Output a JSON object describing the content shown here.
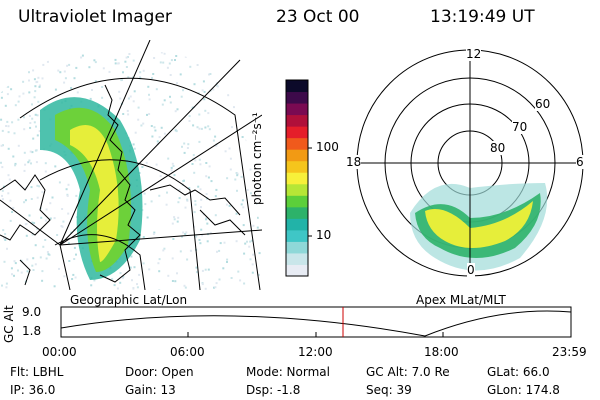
{
  "header": {
    "title": "Ultraviolet Imager",
    "date": "23 Oct 00",
    "time": "13:19:49 UT"
  },
  "colorbar": {
    "unit_label": "photon cm⁻²s⁻¹",
    "ticks": [
      "100",
      "10"
    ],
    "scale": "log",
    "colors": [
      "#e8ecf4",
      "#c9e6ea",
      "#8fd8d8",
      "#3fc6c6",
      "#22b3a8",
      "#2db26a",
      "#5ccf3a",
      "#b6e636",
      "#f7f03a",
      "#f5c51c",
      "#f29a14",
      "#f05a1c",
      "#e51e2a",
      "#b0103a",
      "#7a0a52",
      "#3d0a4a",
      "#0c0a2a"
    ]
  },
  "geo_panel": {
    "label": "Geographic Lat/Lon"
  },
  "polar_panel": {
    "label": "Apex MLat/MLT",
    "mlt_labels": {
      "top": "12",
      "left": "18",
      "right": "6",
      "bottom": "0"
    },
    "mlat_labels": [
      "60",
      "70",
      "80"
    ]
  },
  "altitude_plot": {
    "ylabel": "GC Alt",
    "yticks": [
      "9.0",
      "1.8"
    ],
    "xticks": [
      "00:00",
      "06:00",
      "12:00",
      "18:00",
      "23:59"
    ],
    "current_time_marker_color": "#cc0000"
  },
  "info": {
    "row1": {
      "filter": "Flt: LBHL",
      "door": "Door: Open",
      "mode": "Mode: Normal",
      "gc_alt": "GC Alt: 7.0 Re",
      "glat": "GLat:  66.0"
    },
    "row2": {
      "ip": "IP: 36.0",
      "gain": "Gain: 13",
      "dsp": "Dsp:   -1.8",
      "seq": "Seq: 39",
      "glon": "GLon: 174.8"
    }
  }
}
